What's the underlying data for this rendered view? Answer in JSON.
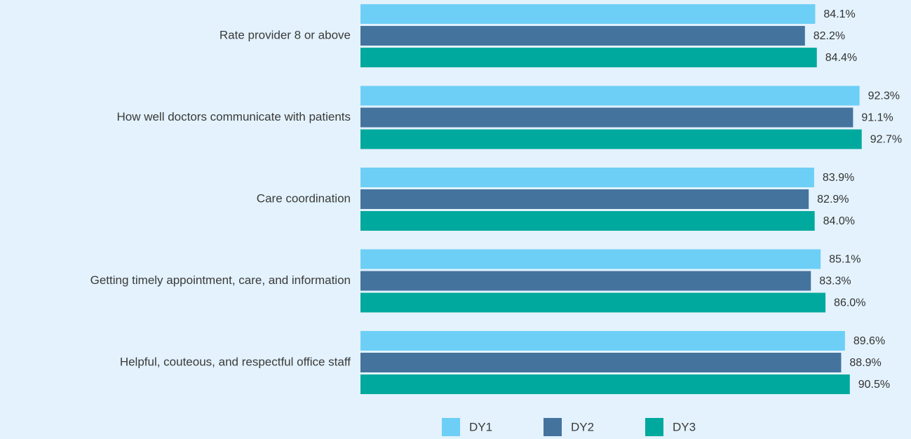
{
  "chart_data": {
    "type": "bar",
    "orientation": "horizontal",
    "categories": [
      "Rate provider 8 or above",
      "How well doctors communicate with patients",
      "Care coordination",
      "Getting timely appointment, care, and information",
      "Helpful, couteous, and respectful office staff"
    ],
    "series": [
      {
        "name": "DY1",
        "color": "#6dcff6",
        "values": [
          84.1,
          92.3,
          83.9,
          85.1,
          89.6
        ],
        "value_labels": [
          "84.1%",
          "92.3%",
          "83.9%",
          "85.1%",
          "89.6%"
        ]
      },
      {
        "name": "DY2",
        "color": "#44739e",
        "values": [
          82.2,
          91.1,
          82.9,
          83.3,
          88.9
        ],
        "value_labels": [
          "82.2%",
          "91.1%",
          "82.9%",
          "83.3%",
          "88.9%"
        ]
      },
      {
        "name": "DY3",
        "color": "#00a99d",
        "values": [
          84.4,
          92.7,
          84.0,
          86.0,
          90.5
        ],
        "value_labels": [
          "84.4%",
          "92.7%",
          "84.0%",
          "86.0%",
          "90.5%"
        ]
      }
    ],
    "xlim": [
      0,
      100
    ],
    "legend": "bottom"
  }
}
